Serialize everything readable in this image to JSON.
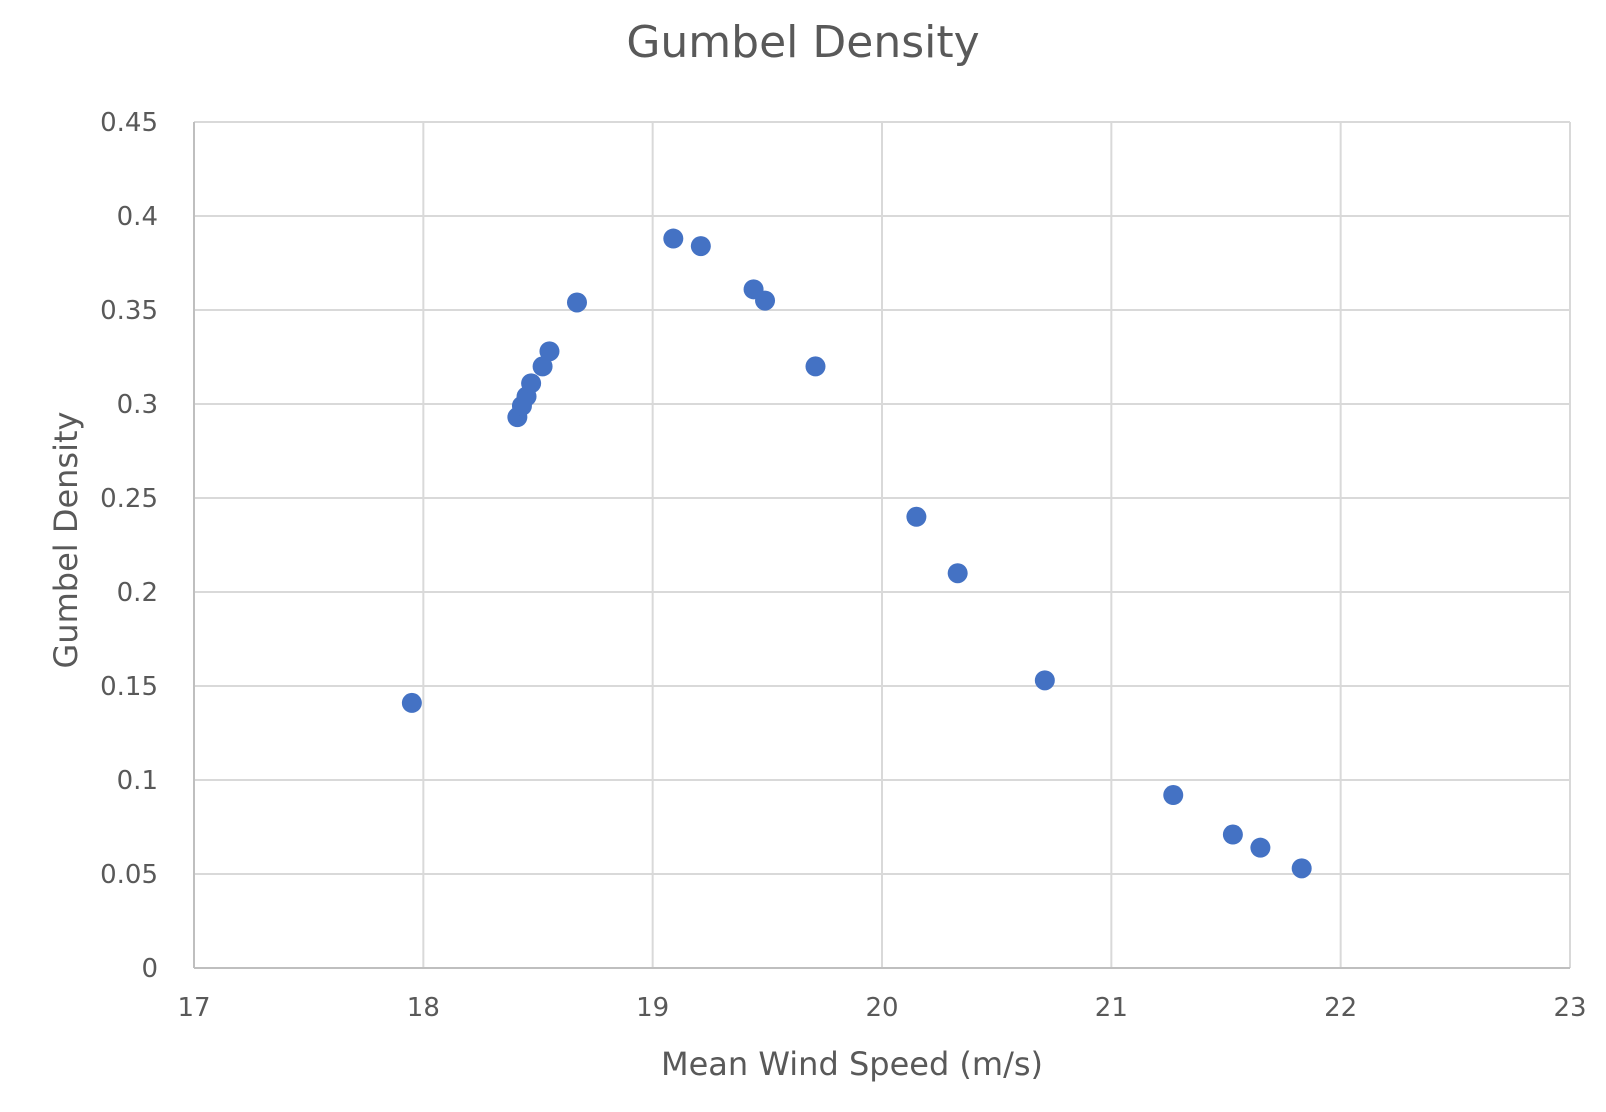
{
  "chart_data": {
    "type": "scatter",
    "title": "Gumbel Density",
    "xlabel": "Mean Wind Speed (m/s)",
    "ylabel": "Gumbel Density",
    "xlim": [
      17,
      23
    ],
    "ylim": [
      0,
      0.45
    ],
    "xticks": [
      "17",
      "18",
      "19",
      "20",
      "21",
      "22",
      "23"
    ],
    "yticks": [
      "0",
      "0.05",
      "0.1",
      "0.15",
      "0.2",
      "0.25",
      "0.3",
      "0.35",
      "0.4",
      "0.45"
    ],
    "grid": true,
    "legend": "none",
    "series": [
      {
        "color": "#4472c4",
        "points": [
          {
            "x": 17.95,
            "y": 0.141
          },
          {
            "x": 18.41,
            "y": 0.293
          },
          {
            "x": 18.43,
            "y": 0.299
          },
          {
            "x": 18.45,
            "y": 0.304
          },
          {
            "x": 18.47,
            "y": 0.311
          },
          {
            "x": 18.52,
            "y": 0.32
          },
          {
            "x": 18.55,
            "y": 0.328
          },
          {
            "x": 18.67,
            "y": 0.354
          },
          {
            "x": 19.09,
            "y": 0.388
          },
          {
            "x": 19.21,
            "y": 0.384
          },
          {
            "x": 19.44,
            "y": 0.361
          },
          {
            "x": 19.49,
            "y": 0.355
          },
          {
            "x": 19.71,
            "y": 0.32
          },
          {
            "x": 20.15,
            "y": 0.24
          },
          {
            "x": 20.33,
            "y": 0.21
          },
          {
            "x": 20.71,
            "y": 0.153
          },
          {
            "x": 21.27,
            "y": 0.092
          },
          {
            "x": 21.53,
            "y": 0.071
          },
          {
            "x": 21.65,
            "y": 0.064
          },
          {
            "x": 21.83,
            "y": 0.053
          }
        ]
      }
    ]
  }
}
